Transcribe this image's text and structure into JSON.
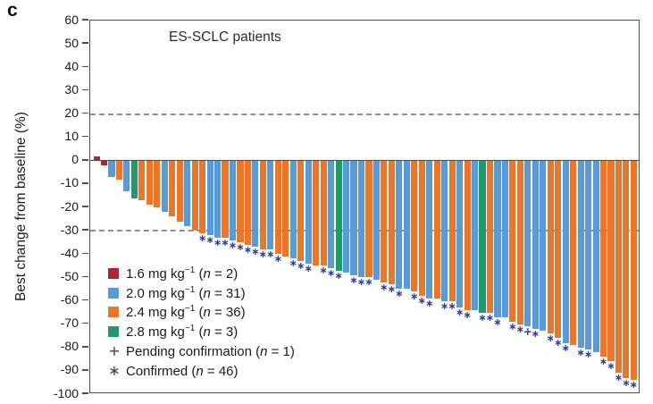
{
  "figure": {
    "panel_label": "c",
    "plot_title": "ES-SCLC patients",
    "y_axis_label": "Best change from baseline (%)"
  },
  "colors": {
    "dose_1_6": "#b1242f",
    "dose_2_0": "#5b9bd5",
    "dose_2_4": "#e8762b",
    "dose_2_8": "#21996a",
    "chart_marker": "#2d3e9e",
    "frame": "#4f4f4f",
    "dashed_line": "#8f8f8f"
  },
  "legend": {
    "items": [
      {
        "symbol_type": "swatch",
        "dose": "1.6",
        "pre": "1.6 mg kg",
        "sup": "−1",
        "mid": " (",
        "n": "n",
        "post": " = 2)"
      },
      {
        "symbol_type": "swatch",
        "dose": "2.0",
        "pre": "2.0 mg kg",
        "sup": "−1",
        "mid": " (",
        "n": "n",
        "post": " = 31)"
      },
      {
        "symbol_type": "swatch",
        "dose": "2.4",
        "pre": "2.4 mg kg",
        "sup": "−1",
        "mid": " (",
        "n": "n",
        "post": " = 36)"
      },
      {
        "symbol_type": "swatch",
        "dose": "2.8",
        "pre": "2.8 mg kg",
        "sup": "−1",
        "mid": " (",
        "n": "n",
        "post": " = 3)"
      },
      {
        "symbol_type": "char",
        "symbol": "+",
        "pre": "Pending confirmation",
        "sup": "",
        "mid": " (",
        "n": "n",
        "post": " = 1)"
      },
      {
        "symbol_type": "char",
        "symbol": "∗",
        "pre": "Confirmed",
        "sup": "",
        "mid": " (",
        "n": "n",
        "post": " = 46)"
      }
    ]
  },
  "chart_data": {
    "type": "bar",
    "title": "ES-SCLC patients",
    "xlabel": "",
    "ylabel": "Best change from baseline (%)",
    "ylim": [
      -100,
      60
    ],
    "yticks": [
      60,
      50,
      40,
      30,
      20,
      10,
      0,
      -10,
      -20,
      -30,
      -40,
      -50,
      -60,
      -70,
      -80,
      -90,
      -100
    ],
    "reference_lines": [
      20,
      -30
    ],
    "grid": false,
    "legend_position": "lower-left-inside",
    "marker_symbols": {
      "confirmed": "∗",
      "pending": "+"
    },
    "values": [
      2,
      -2,
      -7,
      -8,
      -13,
      -16,
      -17,
      -19,
      -20,
      -22,
      -24,
      -26,
      -28,
      -30,
      -31,
      -32,
      -33,
      -33,
      -34,
      -35,
      -36,
      -37,
      -38,
      -38,
      -40,
      -41,
      -42,
      -43,
      -44,
      -45,
      -45,
      -46,
      -47,
      -48,
      -49,
      -50,
      -50,
      -51,
      -52,
      -53,
      -55,
      -55,
      -56,
      -58,
      -59,
      -59,
      -60,
      -60,
      -63,
      -64,
      -64,
      -65,
      -65,
      -67,
      -67,
      -69,
      -70,
      -71,
      -72,
      -73,
      -74,
      -76,
      -78,
      -79,
      -80,
      -81,
      -82,
      -84,
      -86,
      -91,
      -93,
      -94
    ],
    "doses": [
      "1.6",
      "1.6",
      "2.0",
      "2.4",
      "2.0",
      "2.8",
      "2.4",
      "2.4",
      "2.4",
      "2.0",
      "2.4",
      "2.4",
      "2.0",
      "2.4",
      "2.4",
      "2.0",
      "2.0",
      "2.4",
      "2.0",
      "2.4",
      "2.4",
      "2.0",
      "2.4",
      "2.0",
      "2.4",
      "2.4",
      "2.0",
      "2.4",
      "2.0",
      "2.4",
      "2.4",
      "2.0",
      "2.8",
      "2.0",
      "2.0",
      "2.0",
      "2.4",
      "2.0",
      "2.4",
      "2.4",
      "2.0",
      "2.0",
      "2.4",
      "2.4",
      "2.0",
      "2.4",
      "2.0",
      "2.4",
      "2.0",
      "2.4",
      "2.0",
      "2.8",
      "2.4",
      "2.0",
      "2.0",
      "2.4",
      "2.4",
      "2.0",
      "2.0",
      "2.0",
      "2.4",
      "2.4",
      "2.0",
      "2.4",
      "2.0",
      "2.0",
      "2.0",
      "2.4",
      "2.4",
      "2.4",
      "2.4",
      "2.4"
    ],
    "markers": [
      null,
      null,
      null,
      null,
      null,
      null,
      null,
      null,
      null,
      null,
      null,
      null,
      null,
      null,
      "confirmed",
      "confirmed",
      "confirmed",
      "confirmed",
      "confirmed",
      "confirmed",
      "confirmed",
      "confirmed",
      "confirmed",
      "confirmed",
      "confirmed",
      null,
      "confirmed",
      "confirmed",
      "confirmed",
      null,
      "confirmed",
      "confirmed",
      "confirmed",
      null,
      "confirmed",
      "confirmed",
      "confirmed",
      null,
      "confirmed",
      "confirmed",
      "confirmed",
      null,
      "confirmed",
      "confirmed",
      "confirmed",
      null,
      "confirmed",
      "confirmed",
      "confirmed",
      "confirmed",
      null,
      "confirmed",
      "confirmed",
      "confirmed",
      null,
      "confirmed",
      "confirmed",
      "pending",
      "confirmed",
      null,
      "confirmed",
      "confirmed",
      "confirmed",
      null,
      "confirmed",
      "confirmed",
      null,
      "confirmed",
      "confirmed",
      "confirmed",
      "confirmed",
      "confirmed"
    ]
  }
}
